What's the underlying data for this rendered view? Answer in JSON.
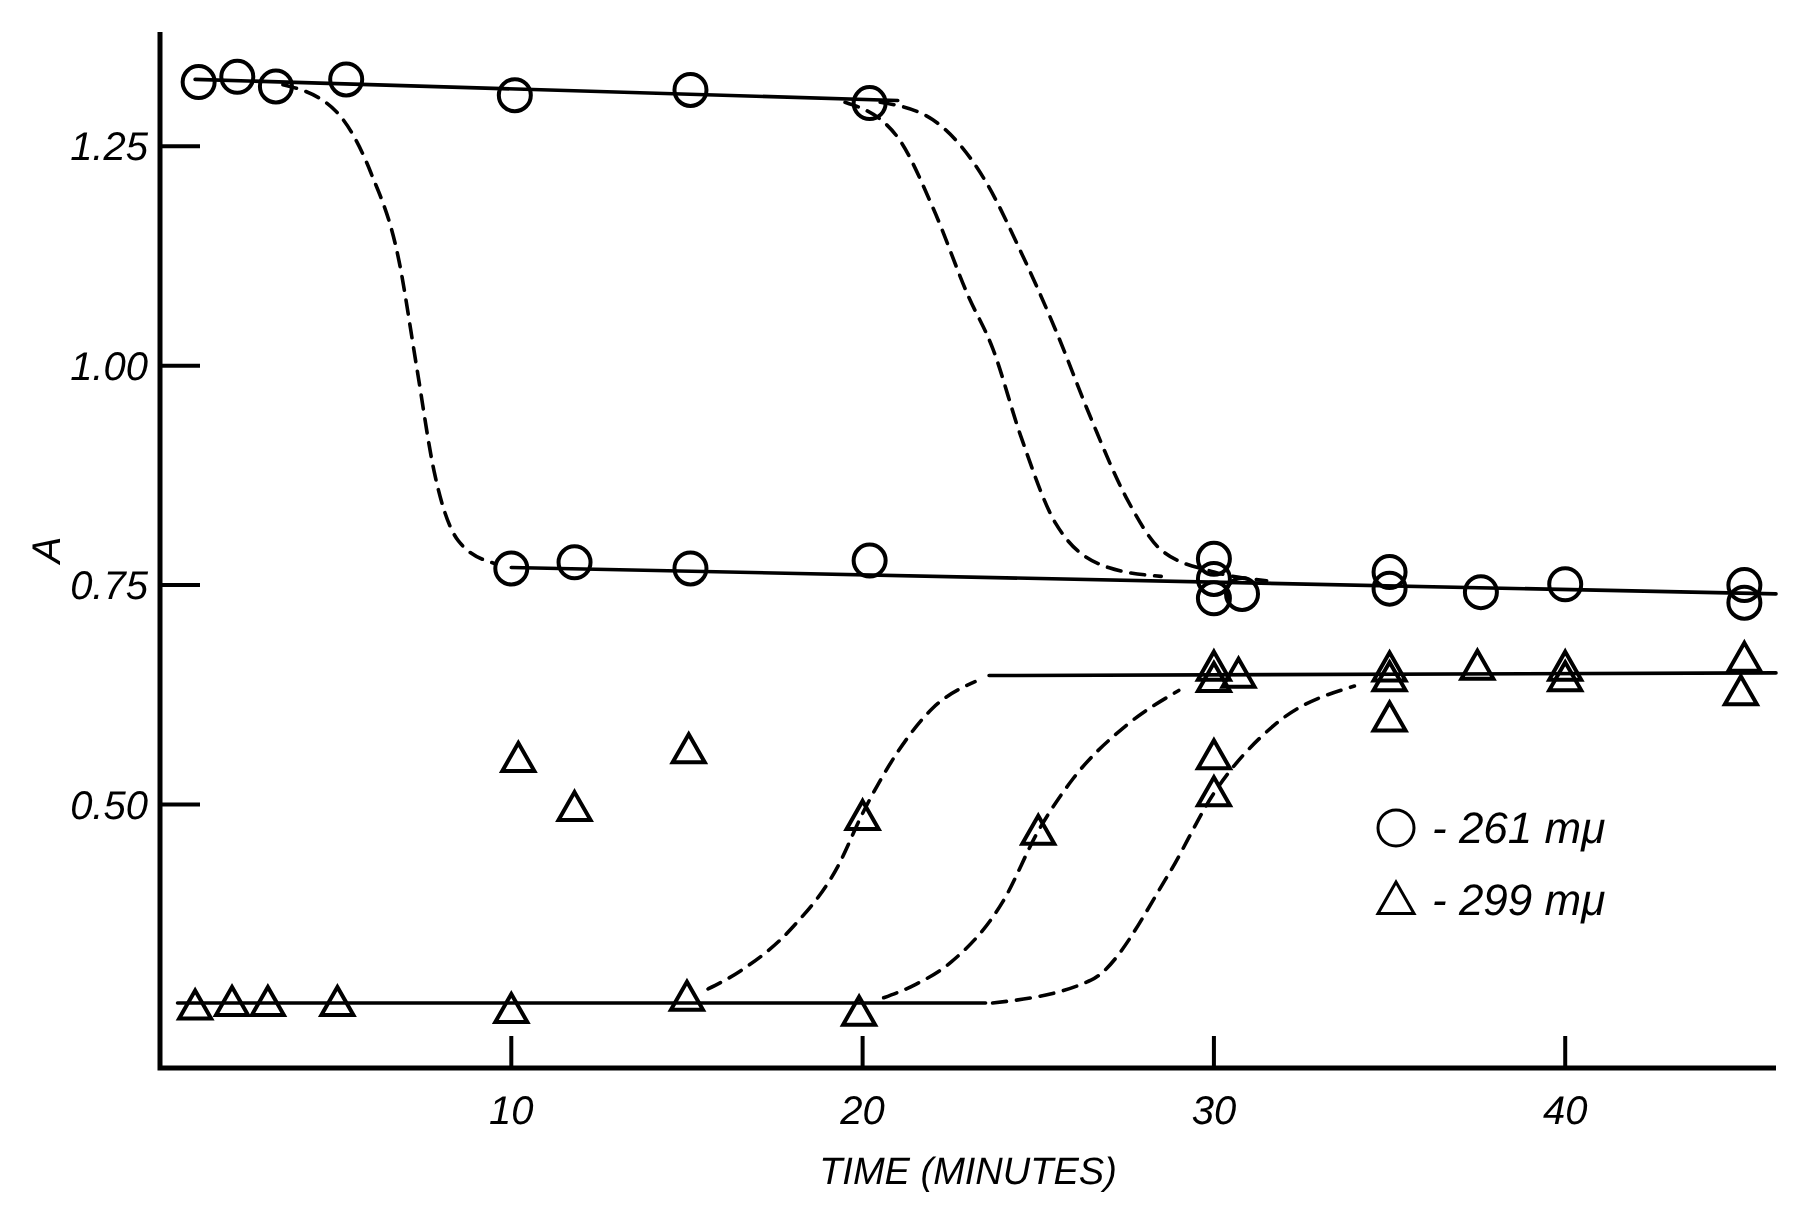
{
  "chart_data": {
    "type": "scatter",
    "xlabel": "TIME (MINUTES)",
    "ylabel": "A",
    "xlim": [
      0,
      46
    ],
    "ylim": [
      0.2,
      1.38
    ],
    "xticks": [
      10,
      20,
      30,
      40
    ],
    "yticks": [
      {
        "value": 0.5,
        "label": "0.50"
      },
      0.75,
      {
        "value": 1.0,
        "label": "1.00"
      },
      1.25
    ],
    "grid": false,
    "legend": "bottom right",
    "series": [
      {
        "name": "- 261 mμ",
        "marker": "circle",
        "color": "#000000",
        "x": [
          1.1,
          2.2,
          3.3,
          5.3,
          10.1,
          15.1,
          20.2,
          10.0,
          11.8,
          15.1,
          20.2,
          30.0,
          30.0,
          30.0,
          30.8,
          35.0,
          35.0,
          37.6,
          40.0,
          45.1,
          45.1
        ],
        "values": [
          1.323,
          1.329,
          1.318,
          1.326,
          1.308,
          1.314,
          1.299,
          0.769,
          0.776,
          0.769,
          0.778,
          0.78,
          0.757,
          0.735,
          0.74,
          0.765,
          0.746,
          0.742,
          0.751,
          0.75,
          0.73
        ]
      },
      {
        "name": "- 299 mμ",
        "marker": "triangle",
        "color": "#000000",
        "x": [
          1.0,
          2.05,
          3.07,
          5.05,
          10.0,
          15.0,
          19.9,
          10.2,
          11.8,
          15.05,
          20.0,
          25.0,
          30.0,
          30.0,
          30.0,
          30.0,
          30.7,
          35.0,
          35.0,
          35.0,
          37.5,
          40.0,
          40.0,
          45.1,
          45.0
        ],
        "values": [
          0.27,
          0.274,
          0.274,
          0.274,
          0.266,
          0.28,
          0.263,
          0.552,
          0.496,
          0.562,
          0.486,
          0.469,
          0.555,
          0.513,
          0.656,
          0.643,
          0.648,
          0.655,
          0.644,
          0.598,
          0.657,
          0.656,
          0.644,
          0.666,
          0.628
        ]
      },
      {
        "type": "line",
        "marker": "none",
        "line_style": "solid",
        "color": "#000000",
        "x": [
          1,
          21
        ],
        "values": [
          1.326,
          1.302
        ]
      },
      {
        "type": "line",
        "marker": "none",
        "line_style": "solid",
        "color": "#000000",
        "x": [
          10,
          46
        ],
        "values": [
          0.77,
          0.74
        ]
      },
      {
        "type": "line",
        "marker": "none",
        "line_style": "solid",
        "color": "#000000",
        "x": [
          0.5,
          23.5
        ],
        "values": [
          0.274,
          0.274
        ]
      },
      {
        "type": "line",
        "marker": "none",
        "line_style": "solid",
        "color": "#000000",
        "x": [
          23.6,
          46
        ],
        "values": [
          0.647,
          0.65
        ]
      },
      {
        "type": "line",
        "marker": "none",
        "line_style": "dashed",
        "color": "#000000",
        "x": [
          3.5,
          5,
          6,
          6.8,
          7.3,
          7.8,
          8.5,
          9.5
        ],
        "values": [
          1.32,
          1.29,
          1.22,
          1.12,
          1.0,
          0.88,
          0.8,
          0.775
        ]
      },
      {
        "type": "line",
        "marker": "none",
        "line_style": "dashed",
        "color": "#000000",
        "x": [
          19.5,
          21,
          22,
          23,
          23.7,
          24.5,
          25.5,
          27,
          28.5
        ],
        "values": [
          1.3,
          1.26,
          1.18,
          1.08,
          1.02,
          0.92,
          0.82,
          0.77,
          0.76
        ]
      },
      {
        "type": "line",
        "marker": "none",
        "line_style": "dashed",
        "color": "#000000",
        "x": [
          20.5,
          22,
          23.5,
          24.5,
          25.5,
          26.5,
          27.5,
          28.5,
          30,
          31.5
        ],
        "values": [
          1.3,
          1.28,
          1.21,
          1.13,
          1.04,
          0.94,
          0.85,
          0.79,
          0.765,
          0.755
        ]
      },
      {
        "type": "line",
        "marker": "none",
        "line_style": "dashed",
        "color": "#000000",
        "x": [
          15.6,
          16.5,
          18,
          19.3,
          20,
          21,
          22,
          23.2
        ],
        "values": [
          0.29,
          0.31,
          0.36,
          0.43,
          0.49,
          0.56,
          0.61,
          0.64
        ]
      },
      {
        "type": "line",
        "marker": "none",
        "line_style": "dashed",
        "color": "#000000",
        "x": [
          20.6,
          21.5,
          22.5,
          24,
          25,
          26,
          27.5,
          29
        ],
        "values": [
          0.28,
          0.295,
          0.32,
          0.39,
          0.47,
          0.53,
          0.59,
          0.63
        ]
      },
      {
        "type": "line",
        "marker": "none",
        "line_style": "dashed",
        "color": "#000000",
        "x": [
          23.7,
          26.5,
          28.7,
          30,
          31.7,
          34
        ],
        "values": [
          0.274,
          0.3,
          0.42,
          0.513,
          0.59,
          0.635
        ]
      }
    ]
  }
}
